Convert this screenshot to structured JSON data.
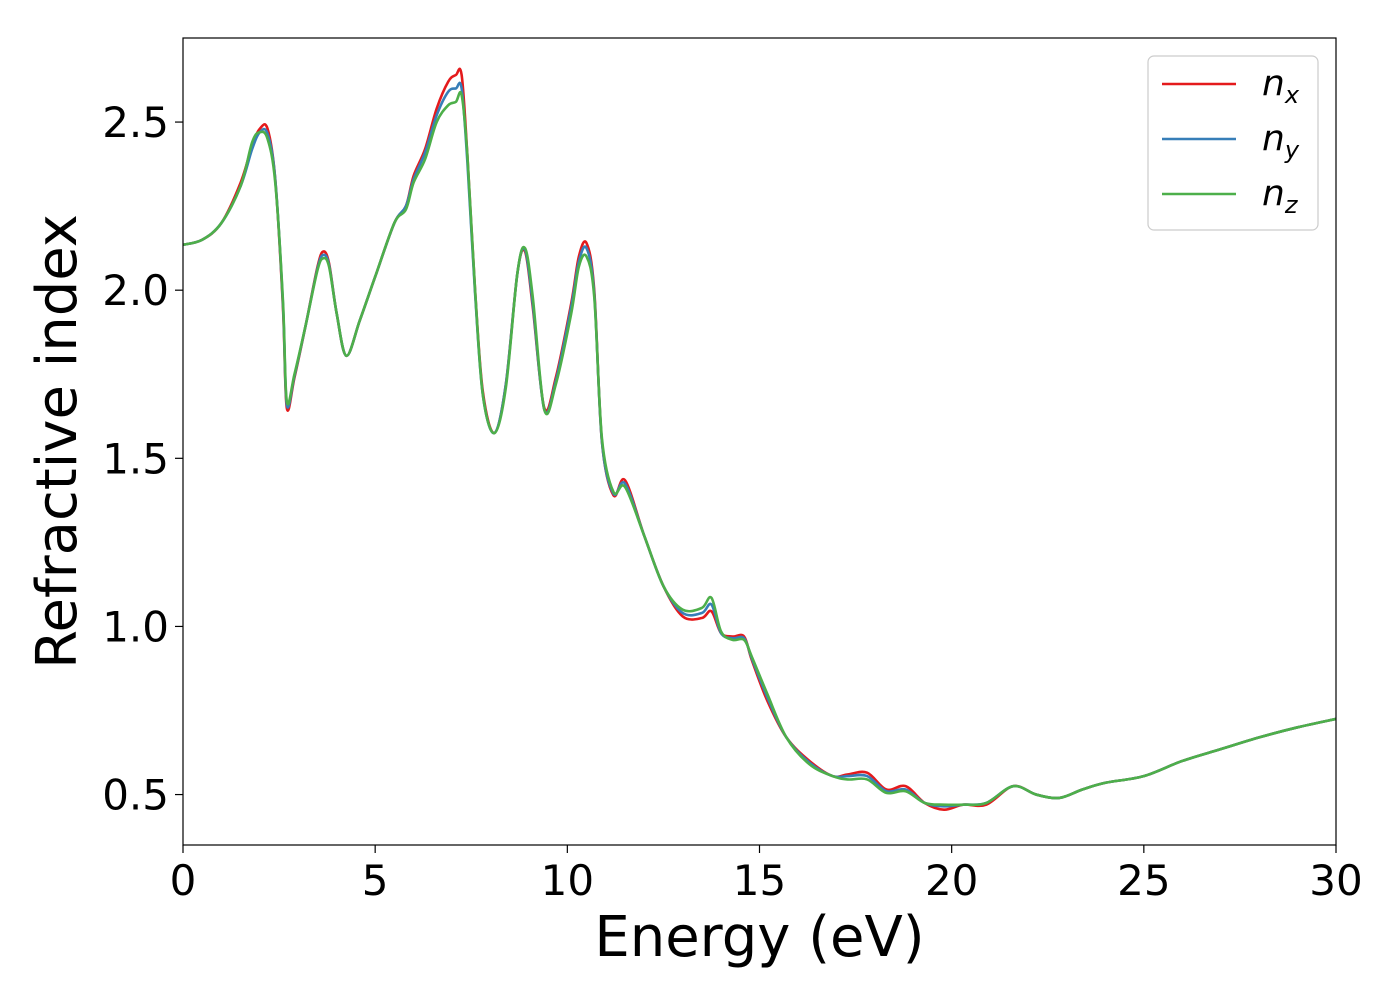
{
  "chart_data": {
    "type": "line",
    "title": "",
    "xlabel": "Energy (eV)",
    "ylabel": "Refractive index",
    "xlim": [
      0,
      30
    ],
    "ylim": [
      0.35,
      2.75
    ],
    "xticks": [
      0,
      5,
      10,
      15,
      20,
      25,
      30
    ],
    "xtick_labels": [
      "0",
      "5",
      "10",
      "15",
      "20",
      "25",
      "30"
    ],
    "yticks": [
      0.5,
      1.0,
      1.5,
      2.0,
      2.5
    ],
    "ytick_labels": [
      "0.5",
      "1.0",
      "1.5",
      "2.0",
      "2.5"
    ],
    "grid": false,
    "legend_position": "top-right",
    "legend": [
      {
        "base": "n",
        "sub": "x",
        "color": "#e41a1c"
      },
      {
        "base": "n",
        "sub": "y",
        "color": "#377eb8"
      },
      {
        "base": "n",
        "sub": "z",
        "color": "#4daf4a"
      }
    ],
    "series": [
      {
        "name": "n_x",
        "color": "#e41a1c",
        "x": [
          0,
          0.5,
          1.0,
          1.5,
          1.8,
          2.0,
          2.2,
          2.4,
          2.6,
          2.7,
          2.9,
          3.2,
          3.5,
          3.65,
          3.8,
          4.0,
          4.25,
          4.6,
          5.0,
          5.5,
          5.8,
          6.0,
          6.3,
          6.6,
          6.9,
          7.1,
          7.25,
          7.4,
          7.6,
          7.8,
          8.1,
          8.4,
          8.7,
          8.9,
          9.1,
          9.4,
          9.7,
          10.1,
          10.3,
          10.5,
          10.7,
          10.9,
          11.2,
          11.5,
          12.0,
          12.5,
          13.0,
          13.5,
          13.75,
          14.0,
          14.3,
          14.6,
          14.8,
          15.2,
          15.7,
          16.3,
          16.9,
          17.3,
          17.8,
          18.3,
          18.8,
          19.3,
          19.8,
          20.3,
          20.9,
          21.6,
          22.2,
          22.8,
          23.4,
          24.0,
          25.0,
          26.0,
          27.0,
          28.0,
          29.0,
          30.0
        ],
        "values": [
          2.135,
          2.15,
          2.2,
          2.32,
          2.43,
          2.48,
          2.48,
          2.33,
          1.95,
          1.65,
          1.74,
          1.9,
          2.07,
          2.115,
          2.08,
          1.93,
          1.805,
          1.91,
          2.04,
          2.2,
          2.25,
          2.34,
          2.42,
          2.54,
          2.62,
          2.64,
          2.64,
          2.4,
          2.0,
          1.7,
          1.575,
          1.72,
          2.05,
          2.115,
          1.95,
          1.65,
          1.74,
          1.96,
          2.1,
          2.14,
          2.0,
          1.55,
          1.39,
          1.435,
          1.27,
          1.12,
          1.03,
          1.025,
          1.045,
          0.98,
          0.97,
          0.97,
          0.9,
          0.78,
          0.67,
          0.6,
          0.555,
          0.56,
          0.565,
          0.515,
          0.525,
          0.475,
          0.455,
          0.47,
          0.47,
          0.525,
          0.5,
          0.49,
          0.515,
          0.535,
          0.555,
          0.6,
          0.635,
          0.67,
          0.7,
          0.725
        ]
      },
      {
        "name": "n_y",
        "color": "#377eb8",
        "x": [
          0,
          0.5,
          1.0,
          1.5,
          1.8,
          2.0,
          2.2,
          2.4,
          2.6,
          2.7,
          2.9,
          3.2,
          3.5,
          3.65,
          3.8,
          4.0,
          4.25,
          4.6,
          5.0,
          5.5,
          5.8,
          6.0,
          6.3,
          6.6,
          6.9,
          7.1,
          7.25,
          7.4,
          7.6,
          7.8,
          8.1,
          8.4,
          8.7,
          8.9,
          9.1,
          9.4,
          9.7,
          10.1,
          10.3,
          10.5,
          10.7,
          10.9,
          11.2,
          11.5,
          12.0,
          12.5,
          13.0,
          13.5,
          13.75,
          14.0,
          14.3,
          14.6,
          14.8,
          15.2,
          15.7,
          16.3,
          16.9,
          17.3,
          17.8,
          18.3,
          18.8,
          19.3,
          19.8,
          20.3,
          20.9,
          21.6,
          22.2,
          22.8,
          23.4,
          24.0,
          25.0,
          26.0,
          27.0,
          28.0,
          29.0,
          30.0
        ],
        "values": [
          2.135,
          2.15,
          2.2,
          2.31,
          2.42,
          2.47,
          2.465,
          2.33,
          1.96,
          1.66,
          1.745,
          1.9,
          2.065,
          2.105,
          2.075,
          1.93,
          1.805,
          1.91,
          2.04,
          2.2,
          2.25,
          2.33,
          2.41,
          2.52,
          2.59,
          2.6,
          2.6,
          2.38,
          1.99,
          1.69,
          1.575,
          1.72,
          2.05,
          2.12,
          1.96,
          1.645,
          1.73,
          1.95,
          2.085,
          2.125,
          1.99,
          1.55,
          1.395,
          1.425,
          1.27,
          1.12,
          1.04,
          1.04,
          1.065,
          0.98,
          0.965,
          0.965,
          0.905,
          0.79,
          0.67,
          0.595,
          0.555,
          0.555,
          0.555,
          0.51,
          0.515,
          0.475,
          0.465,
          0.47,
          0.475,
          0.525,
          0.5,
          0.49,
          0.515,
          0.535,
          0.555,
          0.6,
          0.635,
          0.67,
          0.7,
          0.725
        ]
      },
      {
        "name": "n_z",
        "color": "#4daf4a",
        "x": [
          0,
          0.5,
          1.0,
          1.5,
          1.8,
          2.0,
          2.2,
          2.4,
          2.6,
          2.7,
          2.9,
          3.2,
          3.5,
          3.65,
          3.8,
          4.0,
          4.25,
          4.6,
          5.0,
          5.5,
          5.8,
          6.0,
          6.3,
          6.6,
          6.9,
          7.1,
          7.25,
          7.4,
          7.6,
          7.8,
          8.1,
          8.4,
          8.7,
          8.9,
          9.1,
          9.4,
          9.7,
          10.1,
          10.3,
          10.5,
          10.7,
          10.9,
          11.2,
          11.5,
          12.0,
          12.5,
          13.0,
          13.5,
          13.75,
          14.0,
          14.3,
          14.6,
          14.8,
          15.2,
          15.7,
          16.3,
          16.9,
          17.3,
          17.8,
          18.3,
          18.8,
          19.3,
          19.8,
          20.3,
          20.9,
          21.6,
          22.2,
          22.8,
          23.4,
          24.0,
          25.0,
          26.0,
          27.0,
          28.0,
          29.0,
          30.0
        ],
        "values": [
          2.135,
          2.15,
          2.2,
          2.31,
          2.44,
          2.47,
          2.45,
          2.32,
          1.97,
          1.67,
          1.75,
          1.9,
          2.06,
          2.095,
          2.07,
          1.93,
          1.805,
          1.91,
          2.04,
          2.2,
          2.24,
          2.32,
          2.39,
          2.5,
          2.55,
          2.56,
          2.58,
          2.4,
          2.0,
          1.69,
          1.575,
          1.71,
          2.05,
          2.125,
          1.98,
          1.645,
          1.72,
          1.93,
          2.07,
          2.1,
          1.98,
          1.56,
          1.4,
          1.415,
          1.27,
          1.12,
          1.05,
          1.055,
          1.085,
          0.985,
          0.96,
          0.96,
          0.91,
          0.8,
          0.67,
          0.59,
          0.555,
          0.545,
          0.545,
          0.505,
          0.51,
          0.475,
          0.47,
          0.47,
          0.475,
          0.525,
          0.5,
          0.49,
          0.515,
          0.535,
          0.555,
          0.6,
          0.635,
          0.67,
          0.7,
          0.725
        ]
      }
    ]
  }
}
